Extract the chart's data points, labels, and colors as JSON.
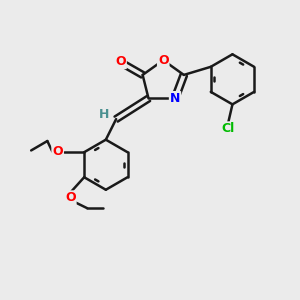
{
  "background_color": "#ebebeb",
  "bond_color": "#1a1a1a",
  "atom_colors": {
    "O": "#ff0000",
    "N": "#0000ff",
    "Cl": "#00bb00",
    "C": "#1a1a1a",
    "H": "#4a9090"
  },
  "figsize": [
    3.0,
    3.0
  ],
  "dpi": 100
}
